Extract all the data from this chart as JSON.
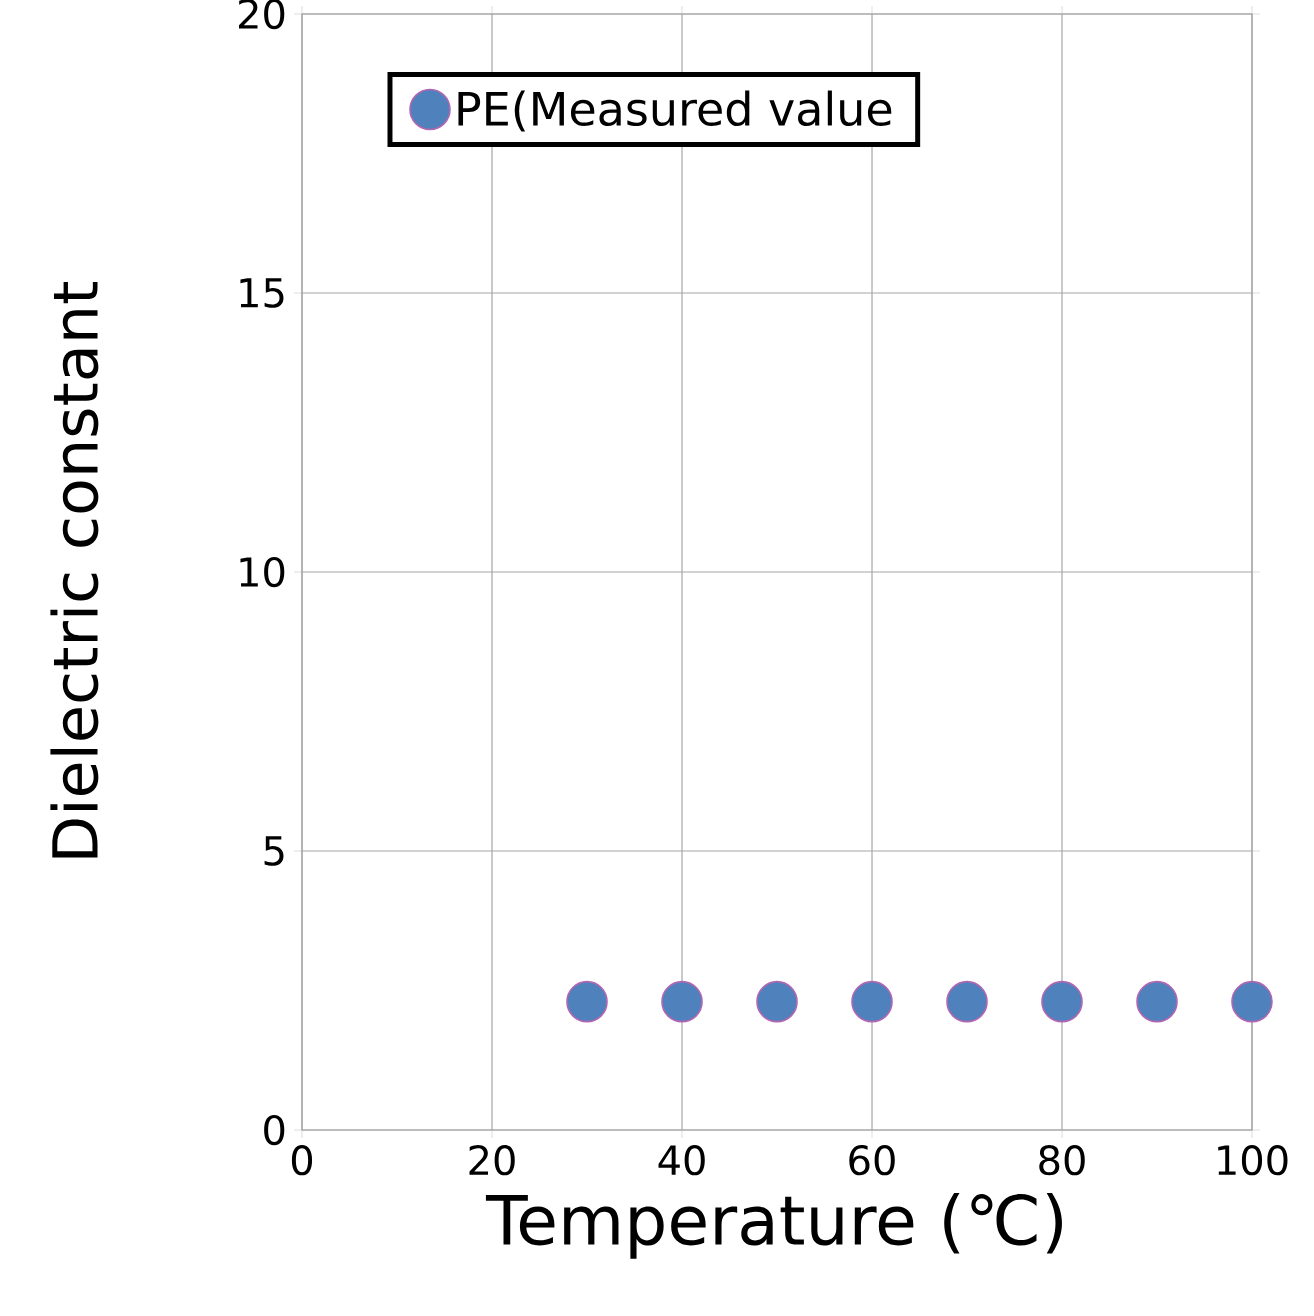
{
  "chart_data": {
    "type": "scatter",
    "xlabel": "Temperature (℃)",
    "ylabel": "Dielectric constant",
    "x": [
      30,
      40,
      50,
      60,
      70,
      80,
      90,
      100
    ],
    "series": [
      {
        "name": "PE(Measured value",
        "color": "#4f81bd",
        "values": [
          2.3,
          2.3,
          2.3,
          2.3,
          2.3,
          2.3,
          2.3,
          2.3
        ]
      }
    ],
    "xlim": [
      0,
      100
    ],
    "ylim": [
      0,
      20
    ],
    "xticks": [
      0,
      20,
      40,
      60,
      80,
      100
    ],
    "yticks": [
      0,
      5,
      10,
      15,
      20
    ],
    "grid": true,
    "legend": "top"
  }
}
